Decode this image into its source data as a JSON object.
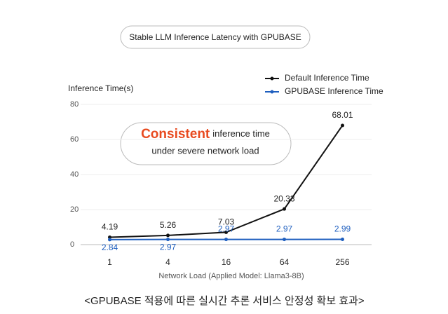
{
  "chart_data": {
    "type": "line",
    "title": "Stable LLM Inference Latency with GPUBASE",
    "y_label": "Inference Time(s)",
    "x_label": "Network Load (Applied Model: Llama3-8B)",
    "categories": [
      "1",
      "4",
      "16",
      "64",
      "256"
    ],
    "series": [
      {
        "name": "Default Inference Time",
        "color": "#111111",
        "values": [
          4.19,
          5.26,
          7.03,
          20.33,
          68.01
        ]
      },
      {
        "name": "GPUBASE Inference Time",
        "color": "#1f5fbf",
        "values": [
          2.84,
          2.97,
          2.97,
          2.97,
          2.99
        ]
      }
    ],
    "ylim": [
      0,
      80
    ],
    "yticks": [
      0,
      20,
      40,
      60,
      80
    ],
    "grid": true,
    "annotation": {
      "highlight": "Consistent",
      "line1": "inference time",
      "line2": "under severe network load"
    },
    "caption": "<GPUBASE 적용에 따른 실시간 추론 서비스 안정성 확보 효과>"
  }
}
